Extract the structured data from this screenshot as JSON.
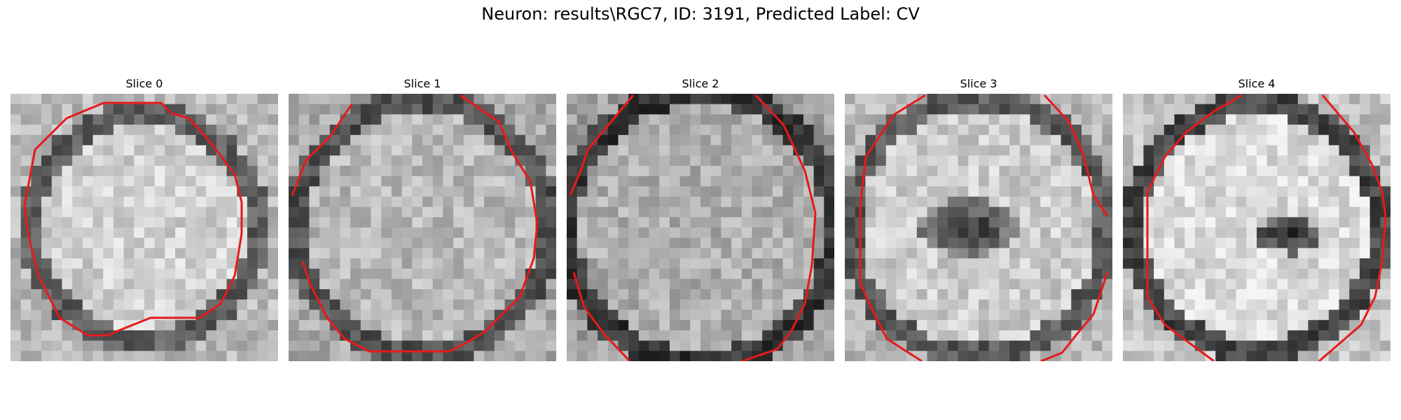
{
  "figure": {
    "title": "Neuron: results\\RGC7, ID: 3191, Predicted Label: CV"
  },
  "panels": [
    {
      "title": "Slice 0"
    },
    {
      "title": "Slice 1"
    },
    {
      "title": "Slice 2"
    },
    {
      "title": "Slice 3"
    },
    {
      "title": "Slice 4"
    }
  ],
  "colors": {
    "contour": "#e8191a",
    "background": "#ffffff"
  }
}
